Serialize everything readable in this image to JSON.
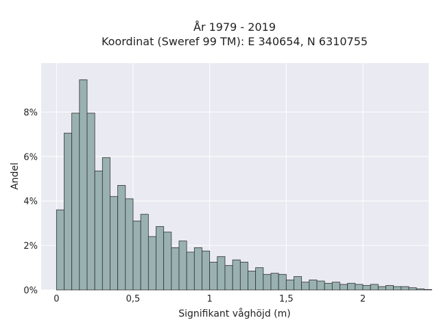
{
  "chart_data": {
    "type": "bar",
    "title_lines": [
      "År 1979 - 2019",
      "Koordinat (Sweref 99 TM): E 340654, N 6310755"
    ],
    "xlabel": "Signifikant våghöjd (m)",
    "ylabel": "Andel",
    "bin_width": 0.05,
    "bin_start": 0.0,
    "values": [
      3.6,
      7.05,
      7.95,
      9.45,
      7.95,
      5.35,
      5.95,
      4.2,
      4.7,
      4.1,
      3.1,
      3.4,
      2.4,
      2.85,
      2.6,
      1.9,
      2.2,
      1.7,
      1.9,
      1.75,
      1.25,
      1.5,
      1.1,
      1.35,
      1.25,
      0.85,
      1.0,
      0.7,
      0.75,
      0.7,
      0.45,
      0.6,
      0.35,
      0.45,
      0.4,
      0.3,
      0.35,
      0.25,
      0.3,
      0.25,
      0.2,
      0.25,
      0.15,
      0.2,
      0.15,
      0.15,
      0.1,
      0.05,
      0.02
    ],
    "bar_color": "#99b2b1",
    "bar_edge_color": "#2f2f2f",
    "plot_background": "#eaeaf2",
    "grid": true,
    "xlim": [
      -0.1,
      2.43
    ],
    "ylim": [
      0,
      10.2
    ],
    "xticks": [
      0,
      0.5,
      1,
      1.5,
      2
    ],
    "xtick_labels": [
      "0",
      "0,5",
      "1",
      "1,5",
      "2"
    ],
    "yticks": [
      0,
      2,
      4,
      6,
      8
    ],
    "ytick_labels": [
      "0%",
      "2%",
      "4%",
      "6%",
      "8%"
    ]
  }
}
